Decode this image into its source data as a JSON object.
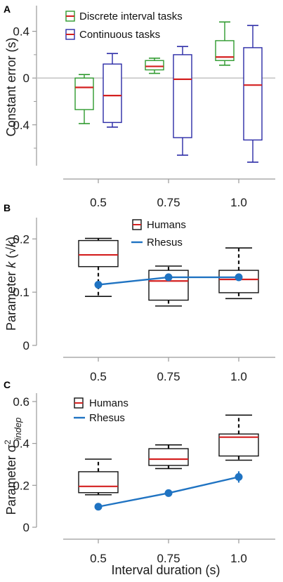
{
  "xlabel": "Interval duration (s)",
  "chart_data": [
    {
      "panel": "A",
      "type": "box",
      "ylabel": "Constant error (s)",
      "categories": [
        "0.5",
        "0.75",
        "1.0"
      ],
      "yticks": [
        "0.4",
        "0",
        "-0.4"
      ],
      "ylim": [
        -0.75,
        0.62
      ],
      "zero_line": true,
      "series": [
        {
          "name": "Discrete interval tasks",
          "color": "#2e9a2e",
          "boxes": [
            {
              "whislo": -0.39,
              "q1": -0.27,
              "med": -0.08,
              "q3": 0.0,
              "whishi": 0.03
            },
            {
              "whislo": 0.04,
              "q1": 0.07,
              "med": 0.1,
              "q3": 0.15,
              "whishi": 0.17
            },
            {
              "whislo": 0.11,
              "q1": 0.15,
              "med": 0.18,
              "q3": 0.32,
              "whishi": 0.48
            }
          ]
        },
        {
          "name": "Continuous tasks",
          "color": "#2a2aa6",
          "boxes": [
            {
              "whislo": -0.42,
              "q1": -0.38,
              "med": -0.15,
              "q3": 0.12,
              "whishi": 0.21
            },
            {
              "whislo": -0.66,
              "q1": -0.51,
              "med": -0.01,
              "q3": 0.2,
              "whishi": 0.27
            },
            {
              "whislo": -0.72,
              "q1": -0.53,
              "med": -0.06,
              "q3": 0.26,
              "whishi": 0.45
            }
          ]
        }
      ],
      "median_color": "#d42020"
    },
    {
      "panel": "B",
      "type": "box+line",
      "ylabel": "Parameter k (√k)",
      "categories": [
        "0.5",
        "0.75",
        "1.0"
      ],
      "yticks": [
        "0.2",
        "0.1",
        "0"
      ],
      "ylim": [
        0,
        0.24
      ],
      "series": [
        {
          "name": "Humans",
          "kind": "box",
          "color": "#111111",
          "boxes": [
            {
              "whislo": 0.092,
              "q1": 0.148,
              "med": 0.17,
              "q3": 0.197,
              "whishi": 0.201
            },
            {
              "whislo": 0.074,
              "q1": 0.085,
              "med": 0.121,
              "q3": 0.141,
              "whishi": 0.149
            },
            {
              "whislo": 0.088,
              "q1": 0.099,
              "med": 0.124,
              "q3": 0.141,
              "whishi": 0.183
            }
          ]
        },
        {
          "name": "Rhesus",
          "kind": "line",
          "color": "#1f73c2",
          "values": [
            0.114,
            0.128,
            0.128
          ],
          "err": [
            0.004,
            0.007,
            0.007
          ]
        }
      ],
      "median_color": "#d42020"
    },
    {
      "panel": "C",
      "type": "box+line",
      "ylabel": "Parameter σ² indep",
      "categories": [
        "0.5",
        "0.75",
        "1.0"
      ],
      "yticks": [
        "0.6",
        "0.4",
        "0.2",
        "0"
      ],
      "ylim": [
        0,
        0.64
      ],
      "series": [
        {
          "name": "Humans",
          "kind": "box",
          "color": "#111111",
          "boxes": [
            {
              "whislo": 0.155,
              "q1": 0.165,
              "med": 0.195,
              "q3": 0.265,
              "whishi": 0.325
            },
            {
              "whislo": 0.28,
              "q1": 0.295,
              "med": 0.325,
              "q3": 0.375,
              "whishi": 0.393
            },
            {
              "whislo": 0.32,
              "q1": 0.34,
              "med": 0.43,
              "q3": 0.445,
              "whishi": 0.535
            }
          ]
        },
        {
          "name": "Rhesus",
          "kind": "line",
          "color": "#1f73c2",
          "values": [
            0.098,
            0.163,
            0.24
          ],
          "err": [
            0.006,
            0.016,
            0.027
          ]
        }
      ],
      "median_color": "#d42020"
    }
  ]
}
